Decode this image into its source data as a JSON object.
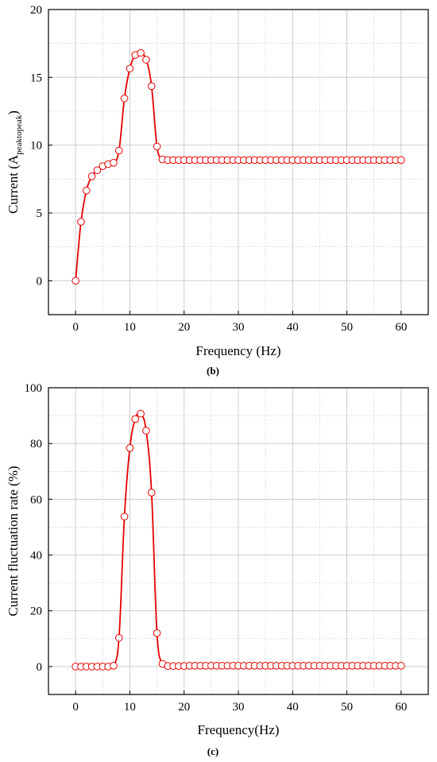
{
  "colors": {
    "series": "#e60000",
    "marker_fill": "#ffffff",
    "grid": "#c8c8c8",
    "axis": "#000000"
  },
  "chart_data": [
    {
      "type": "line",
      "caption": "(b)",
      "xlabel": "Frequency (Hz)",
      "ylabel_main": "Current (A",
      "ylabel_sub": "peaktopeak",
      "ylabel_end": ")",
      "xlim": [
        -5,
        65
      ],
      "ylim": [
        -2.5,
        20
      ],
      "xticks": [
        0,
        10,
        20,
        30,
        40,
        50,
        60
      ],
      "yticks": [
        0,
        5,
        10,
        15,
        20
      ],
      "grid": true,
      "markers": "open-circle",
      "series": [
        {
          "x": [
            0,
            1,
            2,
            3,
            4,
            5,
            6,
            7,
            8,
            9,
            10,
            11,
            12,
            13,
            14,
            15,
            16,
            17,
            18,
            19,
            20,
            21,
            22,
            23,
            24,
            25,
            26,
            27,
            28,
            29,
            30,
            31,
            32,
            33,
            34,
            35,
            36,
            37,
            38,
            39,
            40,
            41,
            42,
            43,
            44,
            45,
            46,
            47,
            48,
            49,
            50,
            51,
            52,
            53,
            54,
            55,
            56,
            57,
            58,
            59,
            60
          ],
          "y": [
            0,
            4.35,
            6.65,
            7.7,
            8.15,
            8.45,
            8.6,
            8.7,
            9.6,
            13.45,
            15.65,
            16.65,
            16.8,
            16.3,
            14.35,
            9.9,
            8.95,
            8.9,
            8.9,
            8.9,
            8.9,
            8.9,
            8.9,
            8.9,
            8.9,
            8.9,
            8.9,
            8.9,
            8.9,
            8.9,
            8.9,
            8.9,
            8.9,
            8.9,
            8.9,
            8.9,
            8.9,
            8.9,
            8.9,
            8.9,
            8.9,
            8.9,
            8.9,
            8.9,
            8.9,
            8.9,
            8.9,
            8.9,
            8.9,
            8.9,
            8.9,
            8.9,
            8.9,
            8.9,
            8.9,
            8.9,
            8.9,
            8.9,
            8.9,
            8.9,
            8.9
          ]
        }
      ]
    },
    {
      "type": "line",
      "caption": "(c)",
      "xlabel": "Frequency(Hz)",
      "ylabel_main": "Current fluctuation rate (%)",
      "ylabel_sub": "",
      "ylabel_end": "",
      "xlim": [
        -5,
        65
      ],
      "ylim": [
        -10,
        100
      ],
      "xticks": [
        0,
        10,
        20,
        30,
        40,
        50,
        60
      ],
      "yticks": [
        0,
        20,
        40,
        60,
        80,
        100
      ],
      "grid": true,
      "markers": "open-circle",
      "series": [
        {
          "x": [
            0,
            1,
            2,
            3,
            4,
            5,
            6,
            7,
            8,
            9,
            10,
            11,
            12,
            13,
            14,
            15,
            16,
            17,
            18,
            19,
            20,
            21,
            22,
            23,
            24,
            25,
            26,
            27,
            28,
            29,
            30,
            31,
            32,
            33,
            34,
            35,
            36,
            37,
            38,
            39,
            40,
            41,
            42,
            43,
            44,
            45,
            46,
            47,
            48,
            49,
            50,
            51,
            52,
            53,
            54,
            55,
            56,
            57,
            58,
            59,
            60
          ],
          "y": [
            0,
            0,
            0,
            0,
            0,
            0,
            0,
            0.3,
            10.3,
            53.8,
            78.4,
            88.8,
            90.7,
            84.6,
            62.4,
            12,
            1,
            0.2,
            0.2,
            0.2,
            0.2,
            0.3,
            0.3,
            0.3,
            0.3,
            0.3,
            0.3,
            0.3,
            0.3,
            0.3,
            0.3,
            0.3,
            0.3,
            0.3,
            0.3,
            0.3,
            0.3,
            0.3,
            0.3,
            0.3,
            0.3,
            0.3,
            0.3,
            0.3,
            0.3,
            0.3,
            0.3,
            0.3,
            0.3,
            0.3,
            0.3,
            0.3,
            0.3,
            0.3,
            0.3,
            0.3,
            0.3,
            0.3,
            0.3,
            0.3,
            0.3
          ]
        }
      ]
    }
  ]
}
